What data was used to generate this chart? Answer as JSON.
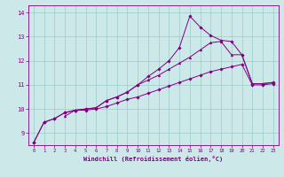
{
  "xlabel": "Windchill (Refroidissement éolien,°C)",
  "background_color": "#cce8e8",
  "line_color": "#800080",
  "grid_color": "#99cccc",
  "xlim": [
    -0.5,
    23.5
  ],
  "ylim": [
    8.5,
    14.3
  ],
  "xticks": [
    0,
    1,
    2,
    3,
    4,
    5,
    6,
    7,
    8,
    9,
    10,
    11,
    12,
    13,
    14,
    15,
    16,
    17,
    18,
    19,
    20,
    21,
    22,
    23
  ],
  "yticks": [
    9,
    10,
    11,
    12,
    13,
    14
  ],
  "line1_x": [
    0,
    1,
    2,
    3,
    4,
    5,
    6,
    7,
    8,
    9,
    10,
    11,
    12,
    13,
    14,
    15,
    16,
    17,
    18,
    19,
    20,
    21,
    22,
    23
  ],
  "line1_y": [
    8.6,
    9.45,
    9.6,
    9.85,
    9.95,
    9.95,
    10.0,
    10.1,
    10.25,
    10.4,
    10.5,
    10.65,
    10.8,
    10.95,
    11.1,
    11.25,
    11.4,
    11.55,
    11.65,
    11.75,
    11.85,
    11.0,
    11.0,
    11.05
  ],
  "line2_x": [
    3,
    4,
    5,
    6,
    7,
    8,
    9,
    10,
    11,
    12,
    13,
    14,
    15,
    16,
    17,
    18,
    19,
    20,
    21,
    22,
    23
  ],
  "line2_y": [
    9.7,
    9.95,
    10.0,
    10.05,
    10.35,
    10.5,
    10.7,
    11.0,
    11.2,
    11.4,
    11.65,
    11.9,
    12.15,
    12.45,
    12.75,
    12.8,
    12.25,
    12.25,
    11.05,
    11.05,
    11.1
  ],
  "line3_x": [
    0,
    1,
    2,
    3,
    4,
    5,
    6,
    7,
    8,
    9,
    10,
    11,
    12,
    13,
    14,
    15,
    16,
    17,
    18,
    19,
    20,
    21,
    22,
    23
  ],
  "line3_y": [
    8.6,
    9.45,
    9.6,
    9.85,
    9.95,
    10.0,
    10.05,
    10.35,
    10.5,
    10.7,
    11.0,
    11.35,
    11.65,
    12.0,
    12.55,
    13.85,
    13.4,
    13.05,
    12.85,
    12.8,
    12.25,
    11.05,
    11.05,
    11.1
  ]
}
